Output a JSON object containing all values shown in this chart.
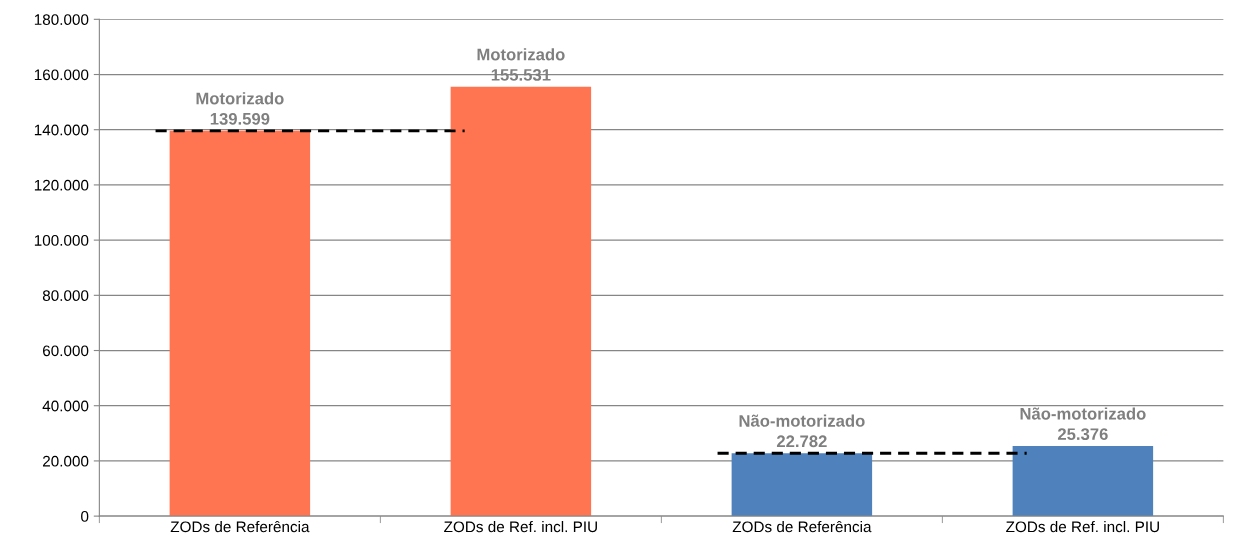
{
  "chart_data": {
    "type": "bar",
    "categories": [
      "ZODs de Referência",
      "ZODs de Ref. incl. PIU",
      "ZODs de Referência",
      "ZODs de Ref. incl. PIU"
    ],
    "values": [
      139599,
      155531,
      22782,
      25376
    ],
    "colors": [
      "#ff7552",
      "#ff7552",
      "#4f81bd",
      "#4f81bd"
    ],
    "value_labels": [
      "Motorizado\n139.599",
      "Motorizado\n155.531",
      "Não-motorizado\n22.782",
      "Não-motorizado\n25.376"
    ],
    "ylim": [
      0,
      180000
    ],
    "yticks": [
      {
        "value": 0,
        "label": "0"
      },
      {
        "value": 20000,
        "label": "20.000"
      },
      {
        "value": 40000,
        "label": "40.000"
      },
      {
        "value": 60000,
        "label": "60.000"
      },
      {
        "value": 80000,
        "label": "80.000"
      },
      {
        "value": 100000,
        "label": "100.000"
      },
      {
        "value": 120000,
        "label": "120.000"
      },
      {
        "value": 140000,
        "label": "140.000"
      },
      {
        "value": 160000,
        "label": "160.000"
      },
      {
        "value": 180000,
        "label": "180.000"
      }
    ],
    "ref_lines": [
      {
        "axis": "y",
        "value": 139599,
        "color": "#000000",
        "line_style": "dashed"
      },
      {
        "axis": "y",
        "value": 22782,
        "color": "#000000",
        "line_style": "dashed"
      }
    ],
    "grid": "y"
  }
}
